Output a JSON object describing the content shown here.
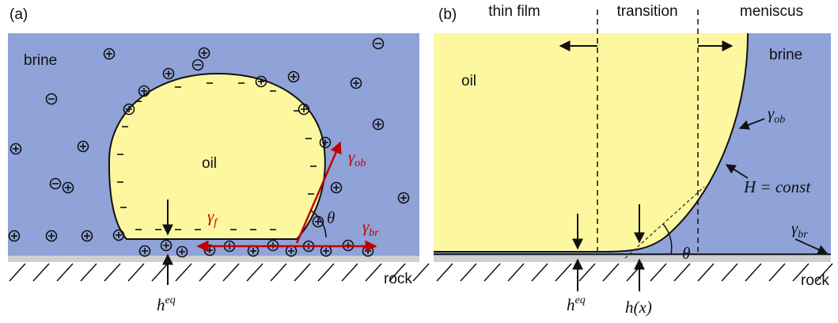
{
  "panel_a": {
    "tag": "(a)",
    "brine": "brine",
    "oil": "oil",
    "gamma_ob": {
      "base": "γ",
      "sub": "ob"
    },
    "gamma_f": {
      "base": "γ",
      "sub": "f"
    },
    "gamma_br": {
      "base": "γ",
      "sub": "br"
    },
    "theta": "θ",
    "h_eq": {
      "base": "h",
      "sup": "eq"
    },
    "rock": "rock"
  },
  "panel_b": {
    "tag": "(b)",
    "thin_film": "thin film",
    "transition": "transition",
    "meniscus": "meniscus",
    "oil": "oil",
    "brine": "brine",
    "gamma_ob": {
      "base": "γ",
      "sub": "ob"
    },
    "h_const": "H = const",
    "gamma_br": {
      "base": "γ",
      "sub": "br"
    },
    "theta": "θ",
    "h_eq": {
      "base": "h",
      "sup": "eq"
    },
    "h_x": "h(x)",
    "rock": "rock"
  }
}
